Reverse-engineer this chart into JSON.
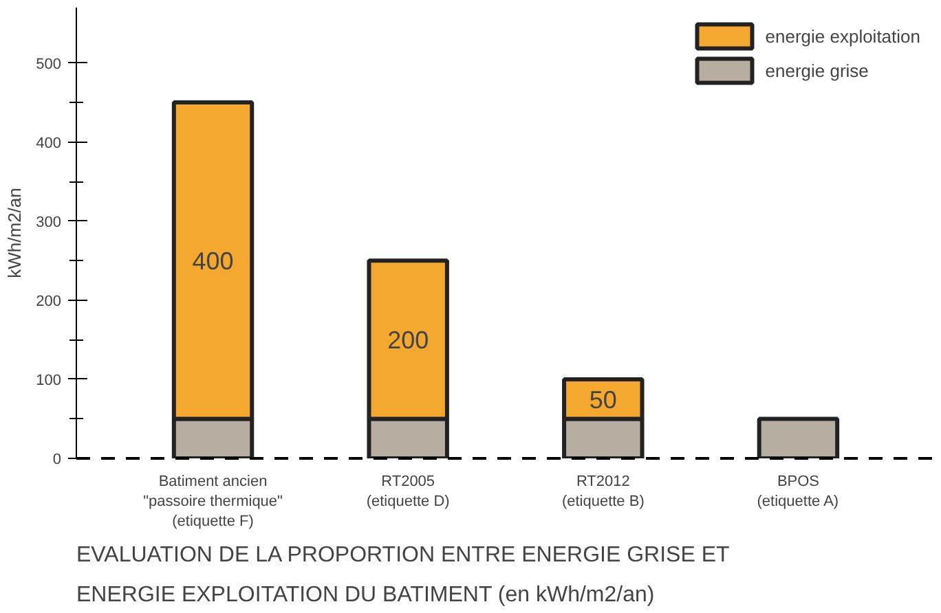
{
  "chart_data": {
    "type": "bar",
    "stacked": true,
    "title": "EVALUATION DE LA PROPORTION ENTRE ENERGIE GRISE ET ENERGIE EXPLOITATION DU BATIMENT (en kWh/m2/an)",
    "ylabel": "kWh/m2/an",
    "categories": [
      "Batiment ancien\n\"passoire thermique\"\n(etiquette F)",
      "RT2005\n(etiquette D)",
      "RT2012\n(etiquette B)",
      "BPOS\n(etiquette A)"
    ],
    "series": [
      {
        "name": "energie grise",
        "color": "#b6aea1",
        "values": [
          50,
          50,
          50,
          50
        ]
      },
      {
        "name": "energie exploitation",
        "color": "#f5a830",
        "values": [
          400,
          200,
          50,
          0
        ],
        "value_labels": [
          "400",
          "200",
          "50",
          null
        ]
      }
    ],
    "ylim": [
      0,
      570
    ],
    "yticks": [
      0,
      {
        "value": 50,
        "label": null
      },
      100,
      {
        "value": 150,
        "label": null
      },
      200,
      {
        "value": 250,
        "label": null
      },
      300,
      {
        "value": 350,
        "label": null
      },
      400,
      {
        "value": 450,
        "label": null
      },
      500
    ],
    "grid": false,
    "legend": "top right"
  }
}
